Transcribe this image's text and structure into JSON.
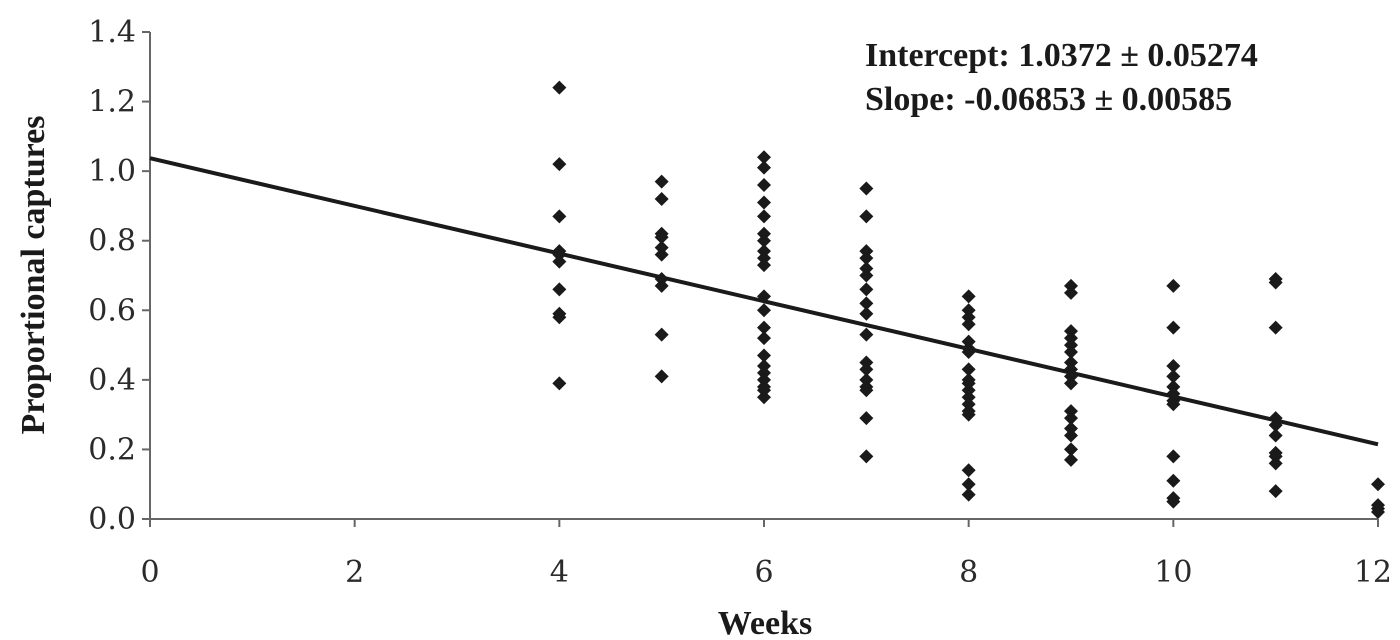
{
  "chart_data": {
    "type": "scatter",
    "title": "",
    "xlabel": "Weeks",
    "ylabel": "Proportional captures",
    "xlim": [
      0,
      12
    ],
    "ylim": [
      0,
      1.4
    ],
    "xticks": [
      0,
      2,
      4,
      6,
      8,
      10,
      12
    ],
    "xtick_labels": [
      "0",
      "2",
      "4",
      "6",
      "8",
      "10",
      "12"
    ],
    "yticks": [
      0,
      0.2,
      0.4,
      0.6,
      0.8,
      1.0,
      1.2,
      1.4
    ],
    "ytick_labels": [
      "0.0",
      "0.2",
      "0.4",
      "0.6",
      "0.8",
      "1.0",
      "1.2",
      "1.4"
    ],
    "grid": false,
    "legend": "none",
    "annotations": [
      "Intercept: 1.0372 ± 0.05274",
      "Slope: -0.06853 ± 0.00585"
    ],
    "colors": {
      "marker": "#1a1a1a",
      "line": "#1a1a1a",
      "axis": "#666666"
    },
    "trendline": {
      "intercept": 1.0372,
      "slope": -0.06853,
      "x_range": [
        0,
        12
      ]
    },
    "series": [
      {
        "marker": "diamond",
        "points": [
          [
            4,
            1.24
          ],
          [
            4,
            1.02
          ],
          [
            4,
            0.87
          ],
          [
            4,
            0.77
          ],
          [
            4,
            0.76
          ],
          [
            4,
            0.74
          ],
          [
            4,
            0.66
          ],
          [
            4,
            0.59
          ],
          [
            4,
            0.58
          ],
          [
            4,
            0.39
          ],
          [
            5,
            0.97
          ],
          [
            5,
            0.92
          ],
          [
            5,
            0.82
          ],
          [
            5,
            0.81
          ],
          [
            5,
            0.78
          ],
          [
            5,
            0.76
          ],
          [
            5,
            0.69
          ],
          [
            5,
            0.67
          ],
          [
            5,
            0.53
          ],
          [
            5,
            0.41
          ],
          [
            6,
            1.04
          ],
          [
            6,
            1.01
          ],
          [
            6,
            0.96
          ],
          [
            6,
            0.91
          ],
          [
            6,
            0.87
          ],
          [
            6,
            0.82
          ],
          [
            6,
            0.8
          ],
          [
            6,
            0.77
          ],
          [
            6,
            0.75
          ],
          [
            6,
            0.73
          ],
          [
            6,
            0.64
          ],
          [
            6,
            0.6
          ],
          [
            6,
            0.55
          ],
          [
            6,
            0.52
          ],
          [
            6,
            0.47
          ],
          [
            6,
            0.44
          ],
          [
            6,
            0.42
          ],
          [
            6,
            0.4
          ],
          [
            6,
            0.38
          ],
          [
            6,
            0.37
          ],
          [
            6,
            0.35
          ],
          [
            7,
            0.95
          ],
          [
            7,
            0.87
          ],
          [
            7,
            0.77
          ],
          [
            7,
            0.75
          ],
          [
            7,
            0.72
          ],
          [
            7,
            0.7
          ],
          [
            7,
            0.66
          ],
          [
            7,
            0.62
          ],
          [
            7,
            0.59
          ],
          [
            7,
            0.53
          ],
          [
            7,
            0.45
          ],
          [
            7,
            0.43
          ],
          [
            7,
            0.4
          ],
          [
            7,
            0.38
          ],
          [
            7,
            0.37
          ],
          [
            7,
            0.29
          ],
          [
            7,
            0.18
          ],
          [
            8,
            0.64
          ],
          [
            8,
            0.6
          ],
          [
            8,
            0.58
          ],
          [
            8,
            0.56
          ],
          [
            8,
            0.51
          ],
          [
            8,
            0.49
          ],
          [
            8,
            0.48
          ],
          [
            8,
            0.43
          ],
          [
            8,
            0.4
          ],
          [
            8,
            0.39
          ],
          [
            8,
            0.37
          ],
          [
            8,
            0.35
          ],
          [
            8,
            0.33
          ],
          [
            8,
            0.31
          ],
          [
            8,
            0.3
          ],
          [
            8,
            0.14
          ],
          [
            8,
            0.1
          ],
          [
            8,
            0.07
          ],
          [
            9,
            0.67
          ],
          [
            9,
            0.65
          ],
          [
            9,
            0.54
          ],
          [
            9,
            0.52
          ],
          [
            9,
            0.5
          ],
          [
            9,
            0.48
          ],
          [
            9,
            0.45
          ],
          [
            9,
            0.43
          ],
          [
            9,
            0.41
          ],
          [
            9,
            0.39
          ],
          [
            9,
            0.31
          ],
          [
            9,
            0.29
          ],
          [
            9,
            0.26
          ],
          [
            9,
            0.24
          ],
          [
            9,
            0.2
          ],
          [
            9,
            0.17
          ],
          [
            10,
            0.67
          ],
          [
            10,
            0.55
          ],
          [
            10,
            0.44
          ],
          [
            10,
            0.41
          ],
          [
            10,
            0.38
          ],
          [
            10,
            0.36
          ],
          [
            10,
            0.34
          ],
          [
            10,
            0.33
          ],
          [
            10,
            0.18
          ],
          [
            10,
            0.11
          ],
          [
            10,
            0.06
          ],
          [
            10,
            0.05
          ],
          [
            11,
            0.69
          ],
          [
            11,
            0.68
          ],
          [
            11,
            0.55
          ],
          [
            11,
            0.29
          ],
          [
            11,
            0.27
          ],
          [
            11,
            0.24
          ],
          [
            11,
            0.19
          ],
          [
            11,
            0.18
          ],
          [
            11,
            0.16
          ],
          [
            11,
            0.08
          ],
          [
            12,
            0.1
          ],
          [
            12,
            0.04
          ],
          [
            12,
            0.03
          ],
          [
            12,
            0.02
          ]
        ]
      }
    ]
  }
}
